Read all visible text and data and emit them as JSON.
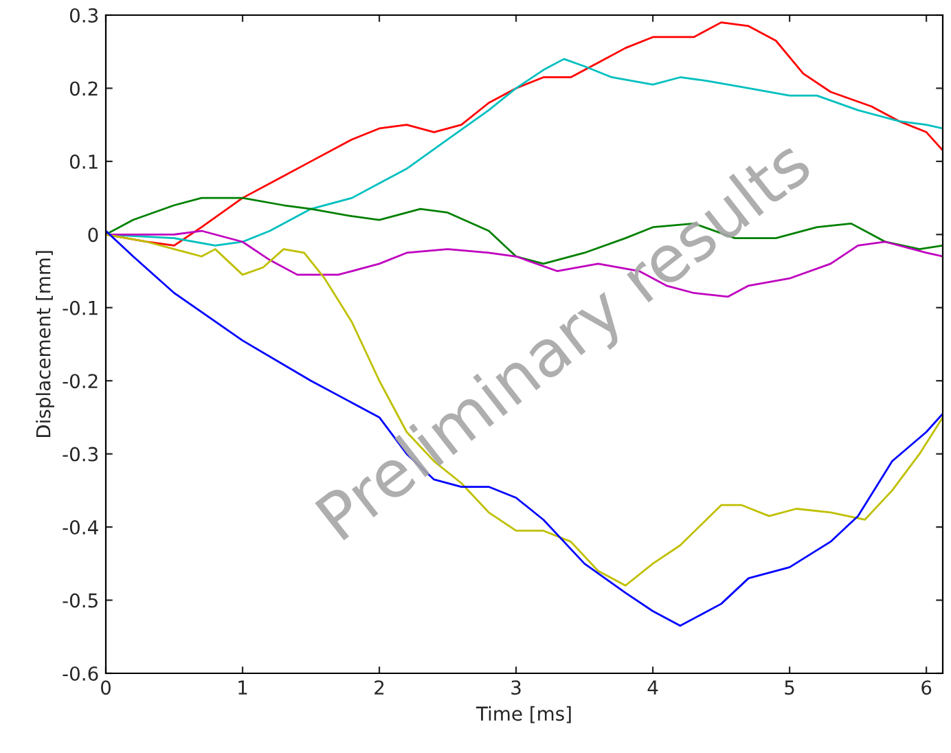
{
  "chart_data": {
    "type": "line",
    "xlabel": "Time [ms]",
    "ylabel": "Displacement [mm]",
    "xlim": [
      0,
      6.12
    ],
    "ylim": [
      -0.6,
      0.3
    ],
    "xticks": [
      0,
      1,
      2,
      3,
      4,
      5,
      6
    ],
    "yticks": [
      {
        "value": -0.6,
        "label": "-0.6"
      },
      {
        "value": -0.5,
        "label": "-0.5"
      },
      {
        "value": -0.4,
        "label": "-0.4"
      },
      {
        "value": -0.3,
        "label": "-0.3"
      },
      {
        "value": -0.2,
        "label": "-0.2"
      },
      {
        "value": -0.1,
        "label": "-0.1"
      },
      {
        "value": 0,
        "label": "0"
      },
      {
        "value": 0.1,
        "label": "0.1"
      },
      {
        "value": 0.2,
        "label": "0.2"
      },
      {
        "value": 0.3,
        "label": "0.3"
      }
    ],
    "marker": "none",
    "line_style": "solid",
    "annotations": [
      "Preliminary results"
    ],
    "series": [
      {
        "color": "#ff0000",
        "x": [
          0,
          0.3,
          0.5,
          0.7,
          1,
          1.3,
          1.5,
          1.8,
          2,
          2.2,
          2.4,
          2.6,
          2.8,
          3,
          3.2,
          3.4,
          3.6,
          3.8,
          4,
          4.3,
          4.5,
          4.7,
          4.9,
          5.1,
          5.3,
          5.6,
          5.8,
          6,
          6.12
        ],
        "values": [
          0,
          -0.01,
          -0.015,
          0.01,
          0.05,
          0.08,
          0.1,
          0.13,
          0.145,
          0.15,
          0.14,
          0.15,
          0.18,
          0.2,
          0.215,
          0.215,
          0.235,
          0.255,
          0.27,
          0.27,
          0.29,
          0.285,
          0.265,
          0.22,
          0.195,
          0.175,
          0.155,
          0.14,
          0.115
        ]
      },
      {
        "color": "#00bfbf",
        "x": [
          0,
          0.5,
          0.8,
          1,
          1.2,
          1.5,
          1.8,
          2,
          2.2,
          2.5,
          2.8,
          3,
          3.2,
          3.35,
          3.5,
          3.7,
          4,
          4.2,
          4.4,
          4.7,
          5,
          5.2,
          5.5,
          5.8,
          6,
          6.12
        ],
        "values": [
          0,
          -0.005,
          -0.015,
          -0.01,
          0.005,
          0.035,
          0.05,
          0.07,
          0.09,
          0.13,
          0.17,
          0.2,
          0.225,
          0.24,
          0.23,
          0.215,
          0.205,
          0.215,
          0.21,
          0.2,
          0.19,
          0.19,
          0.17,
          0.155,
          0.15,
          0.145
        ]
      },
      {
        "color": "#008000",
        "x": [
          0,
          0.2,
          0.5,
          0.7,
          1,
          1.3,
          1.5,
          1.8,
          2,
          2.3,
          2.5,
          2.8,
          3,
          3.2,
          3.5,
          3.8,
          4,
          4.3,
          4.6,
          4.9,
          5.2,
          5.45,
          5.7,
          5.95,
          6.12
        ],
        "values": [
          0,
          0.02,
          0.04,
          0.05,
          0.05,
          0.04,
          0.035,
          0.025,
          0.02,
          0.035,
          0.03,
          0.005,
          -0.03,
          -0.04,
          -0.025,
          -0.005,
          0.01,
          0.015,
          -0.005,
          -0.005,
          0.01,
          0.015,
          -0.01,
          -0.02,
          -0.015
        ]
      },
      {
        "color": "#bf00bf",
        "x": [
          0,
          0.5,
          0.7,
          1,
          1.2,
          1.4,
          1.7,
          2,
          2.2,
          2.5,
          2.8,
          3,
          3.3,
          3.6,
          3.9,
          4.1,
          4.3,
          4.55,
          4.7,
          5,
          5.3,
          5.5,
          5.7,
          6,
          6.12
        ],
        "values": [
          0,
          0,
          0.005,
          -0.01,
          -0.035,
          -0.055,
          -0.055,
          -0.04,
          -0.025,
          -0.02,
          -0.025,
          -0.03,
          -0.05,
          -0.04,
          -0.05,
          -0.07,
          -0.08,
          -0.085,
          -0.07,
          -0.06,
          -0.04,
          -0.015,
          -0.01,
          -0.025,
          -0.03
        ]
      },
      {
        "color": "#bfbf00",
        "x": [
          0,
          0.3,
          0.6,
          0.7,
          0.8,
          1,
          1.15,
          1.3,
          1.45,
          1.6,
          1.8,
          2,
          2.2,
          2.4,
          2.6,
          2.8,
          3,
          3.2,
          3.4,
          3.6,
          3.8,
          4,
          4.2,
          4.5,
          4.65,
          4.85,
          5.05,
          5.3,
          5.55,
          5.75,
          5.95,
          6.12
        ],
        "values": [
          0,
          -0.01,
          -0.025,
          -0.03,
          -0.02,
          -0.055,
          -0.045,
          -0.02,
          -0.025,
          -0.06,
          -0.12,
          -0.2,
          -0.27,
          -0.31,
          -0.34,
          -0.38,
          -0.405,
          -0.405,
          -0.42,
          -0.46,
          -0.48,
          -0.45,
          -0.425,
          -0.37,
          -0.37,
          -0.385,
          -0.375,
          -0.38,
          -0.39,
          -0.35,
          -0.3,
          -0.25
        ]
      },
      {
        "color": "#0000ff",
        "x": [
          0,
          0.2,
          0.5,
          1,
          1.5,
          1.8,
          2,
          2.2,
          2.4,
          2.6,
          2.8,
          3,
          3.2,
          3.5,
          3.8,
          4,
          4.2,
          4.5,
          4.7,
          5,
          5.3,
          5.5,
          5.75,
          6,
          6.12
        ],
        "values": [
          0.005,
          -0.03,
          -0.08,
          -0.145,
          -0.2,
          -0.23,
          -0.25,
          -0.3,
          -0.335,
          -0.345,
          -0.345,
          -0.36,
          -0.39,
          -0.45,
          -0.49,
          -0.515,
          -0.535,
          -0.505,
          -0.47,
          -0.455,
          -0.42,
          -0.385,
          -0.31,
          -0.27,
          -0.245
        ]
      }
    ]
  }
}
